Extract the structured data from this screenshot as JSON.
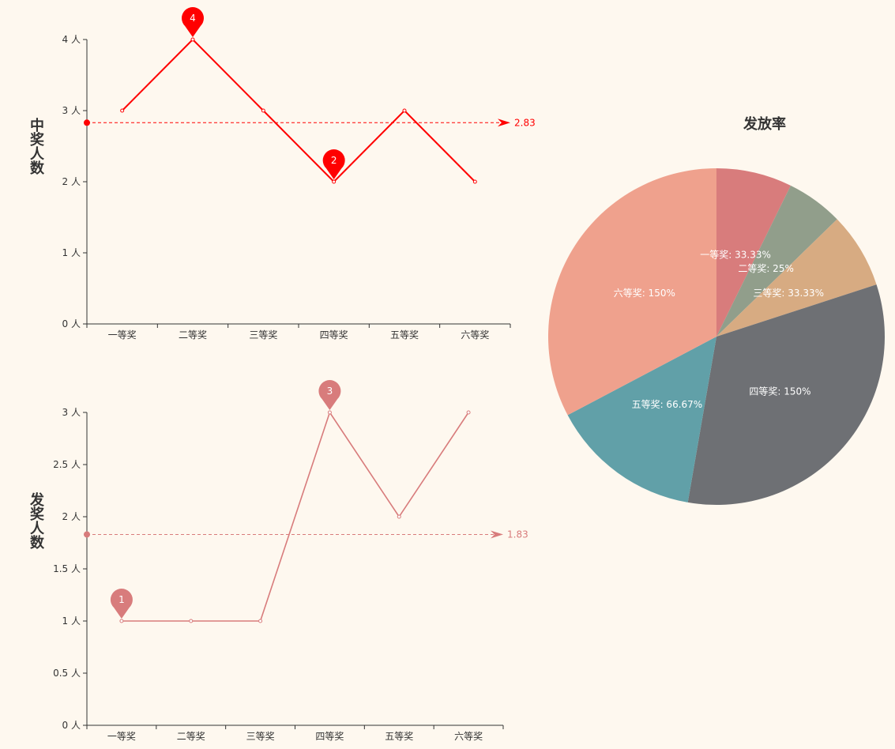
{
  "theme": {
    "background": "#fef8ef",
    "axis_color": "#333333"
  },
  "chart_data": [
    {
      "type": "line",
      "categories": [
        "一等奖",
        "二等奖",
        "三等奖",
        "四等奖",
        "五等奖",
        "六等奖"
      ],
      "series": [
        {
          "values": [
            3,
            4,
            3,
            2,
            3,
            2
          ],
          "color": "#ff0000"
        }
      ],
      "ylabel": "中奖人数",
      "ylim": [
        0,
        4
      ],
      "yticks": [
        0,
        1,
        2,
        3,
        4
      ],
      "ytick_labels": [
        "0 人",
        "1 人",
        "2 人",
        "3 人",
        "4 人"
      ],
      "mark_points": [
        {
          "index": 1,
          "value": 4
        },
        {
          "index": 3,
          "value": 2
        }
      ],
      "mark_line": {
        "value": 2.83
      },
      "grid": false
    },
    {
      "type": "line",
      "categories": [
        "一等奖",
        "二等奖",
        "三等奖",
        "四等奖",
        "五等奖",
        "六等奖"
      ],
      "series": [
        {
          "values": [
            1,
            1,
            1,
            3,
            2,
            3
          ],
          "color": "#d87c7c"
        }
      ],
      "ylabel": "发奖人数",
      "ylim": [
        0,
        3
      ],
      "yticks": [
        0,
        0.5,
        1,
        1.5,
        2,
        2.5,
        3
      ],
      "ytick_labels": [
        "0 人",
        "0.5 人",
        "1 人",
        "1.5 人",
        "2 人",
        "2.5 人",
        "3 人"
      ],
      "mark_points": [
        {
          "index": 0,
          "value": 1
        },
        {
          "index": 3,
          "value": 3
        }
      ],
      "mark_line": {
        "value": 1.83
      },
      "grid": false
    },
    {
      "type": "pie",
      "title": "发放率",
      "slices": [
        {
          "label": "一等奖: 33.33%",
          "value": 33.33,
          "color": "#d87c7c"
        },
        {
          "label": "二等奖: 25%",
          "value": 25,
          "color": "#919e8b"
        },
        {
          "label": "三等奖: 33.33%",
          "value": 33.33,
          "color": "#d7ab82"
        },
        {
          "label": "四等奖: 150%",
          "value": 150,
          "color": "#6e7074"
        },
        {
          "label": "五等奖: 66.67%",
          "value": 66.67,
          "color": "#61a0a8"
        },
        {
          "label": "六等奖: 150%",
          "value": 150,
          "color": "#efa18d"
        }
      ]
    }
  ]
}
